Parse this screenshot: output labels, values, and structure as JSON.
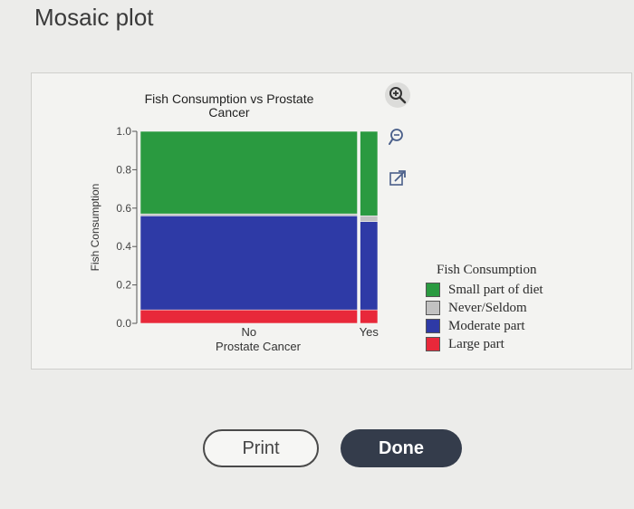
{
  "page": {
    "title": "Mosaic plot"
  },
  "toolbar": {
    "zoom_in_icon": "magnifier-plus-icon",
    "zoom_out_icon": "magnifier-minus-icon",
    "expand_icon": "expand-arrow-icon"
  },
  "buttons": {
    "print_label": "Print",
    "done_label": "Done"
  },
  "chart_data": {
    "type": "mosaic",
    "title": "Fish Consumption vs Prostate Cancer",
    "title_lines": [
      "Fish Consumption vs Prostate",
      "Cancer"
    ],
    "xlabel": "Prostate Cancer",
    "ylabel": "Fish Consumption",
    "ylim": [
      0,
      1
    ],
    "yticks": [
      "0.0",
      "0.2",
      "0.4",
      "0.6",
      "0.8",
      "1.0"
    ],
    "categories": [
      "No",
      "Yes"
    ],
    "column_widths": [
      0.925,
      0.075
    ],
    "series": [
      {
        "name": "Large part",
        "color": "#e8283a",
        "values": [
          0.07,
          0.07
        ]
      },
      {
        "name": "Moderate part",
        "color": "#2e3aa6",
        "values": [
          0.49,
          0.46
        ]
      },
      {
        "name": "Never/Seldom",
        "color": "#c2c2c2",
        "values": [
          0.01,
          0.03
        ]
      },
      {
        "name": "Small part of diet",
        "color": "#2a9a40",
        "values": [
          0.43,
          0.44
        ]
      }
    ],
    "legend": {
      "title": "Fish Consumption",
      "placement": "right",
      "order": [
        "Small part of diet",
        "Never/Seldom",
        "Moderate part",
        "Large part"
      ]
    }
  }
}
